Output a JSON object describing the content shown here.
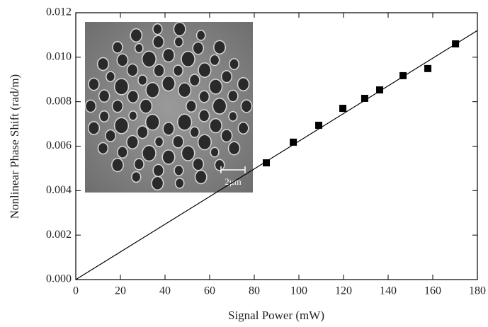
{
  "chart_data": {
    "type": "scatter",
    "x_label": "Signal Power (mW)",
    "y_label": "Nonlinear Phase Shift (rad/m)",
    "xlim": [
      0,
      180
    ],
    "ylim": [
      0,
      0.012
    ],
    "xticks": [
      0,
      20,
      40,
      60,
      80,
      100,
      120,
      140,
      160,
      180
    ],
    "yticks": [
      {
        "value": 0,
        "label": "0.000"
      },
      {
        "value": 0.002,
        "label": "0.002"
      },
      {
        "value": 0.004,
        "label": "0.004"
      },
      {
        "value": 0.006,
        "label": "0.006"
      },
      {
        "value": 0.008,
        "label": "0.008"
      },
      {
        "value": 0.01,
        "label": "0.010"
      },
      {
        "value": 0.012,
        "label": "0.012"
      }
    ],
    "series": [
      {
        "type": "scatter",
        "color": "#000000",
        "x": [
          85.4,
          97.5,
          108.9,
          119.7,
          129.5,
          136.2,
          146.7,
          157.8,
          170.2
        ],
        "values": [
          0.00525,
          0.00618,
          0.00694,
          0.0077,
          0.00815,
          0.00853,
          0.00917,
          0.00949,
          0.0106
        ]
      },
      {
        "type": "line",
        "color": "#000000",
        "x": [
          0,
          180
        ],
        "values": [
          0,
          0.0112
        ]
      }
    ],
    "inset": {
      "scale_label": "2μm"
    }
  }
}
